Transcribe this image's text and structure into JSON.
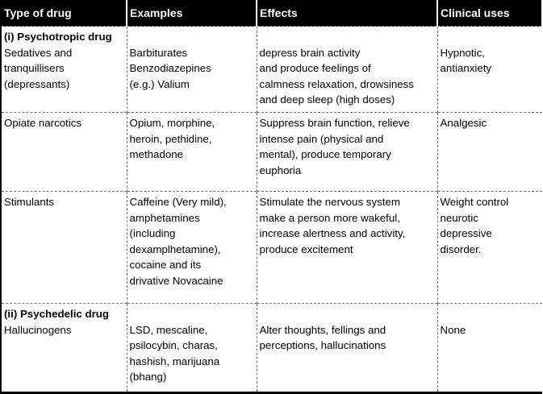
{
  "headers": [
    "Type of drug",
    "Examples",
    "Effects",
    "Clinical uses"
  ],
  "rows": [
    {
      "category": "(i) Psychotropic drug",
      "type": "Sedatives and\ntranquillisers\n(depressants)",
      "examples": "\nBarbiturates\nBenzodiazepines\n(e.g.) Valium",
      "effects": "\ndepress brain activity\nand produce feelings of\ncalmness relaxation, drowsiness\nand deep sleep (high doses)",
      "uses": "\nHypnotic,\nantianxiety"
    },
    {
      "type": "Opiate narcotics",
      "examples": "Opium, morphine,\nheroin, pethidine,\nmethadone",
      "effects": "Suppress brain function, relieve\nintense pain (physical and\nmental), produce temporary\neuphoria",
      "uses": "Analgesic"
    },
    {
      "type": "Stimulants",
      "examples": "Caffeine (Very mild),\namphetamines\n(including\ndexamplhetamine),\ncocaine and its\ndrivative Novacaine",
      "effects": "Stimulate the nervous system\nmake a person more wakeful,\nincrease alertness and activity,\nproduce excitement",
      "uses": "Weight control\nneurotic\ndepressive\ndisorder."
    },
    {
      "category": "(ii) Psychedelic drug",
      "type": "Hallucinogens",
      "examples": "\nLSD, mescaline,\npsilocybin, charas,\nhashish, marijuana\n(bhang)",
      "effects": "\nAlter thoughts, fellings and\nperceptions, hallucinations",
      "uses": "\nNone"
    }
  ]
}
